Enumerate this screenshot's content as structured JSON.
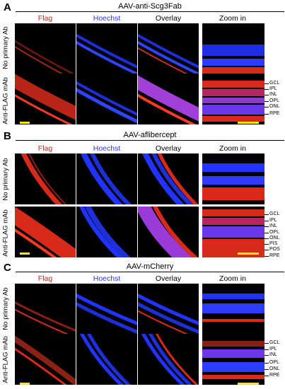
{
  "column_labels": {
    "flag": "Flag",
    "hoechst": "Hoechst",
    "overlay": "Overlay",
    "zoom": "Zoom in"
  },
  "row_labels": {
    "no_primary": "No primary Ab",
    "anti_flag": "Anti-FLAG mAb"
  },
  "panels": [
    {
      "letter": "A",
      "title": "AAV-anti-Scg3Fab",
      "layers": [
        "GCL",
        "IPL",
        "INL",
        "OPL",
        "ONL",
        "RPE"
      ]
    },
    {
      "letter": "B",
      "title": "AAV-aflibercept",
      "layers": [
        "GCL",
        "IPL",
        "INL",
        "OPL",
        "ONL",
        "PIS",
        "POS",
        "RPE"
      ]
    },
    {
      "letter": "C",
      "title": "AAV-mCherry",
      "layers": [
        "GCL",
        "IPL",
        "INL",
        "OPL",
        "ONL",
        "RPE"
      ]
    }
  ],
  "colors": {
    "flag_label": "#d1201a",
    "hoechst_label": "#2b3ad1",
    "scale_bar": "#ffe500",
    "stain_red": "#d82a1a",
    "stain_blue": "#2233ff"
  }
}
